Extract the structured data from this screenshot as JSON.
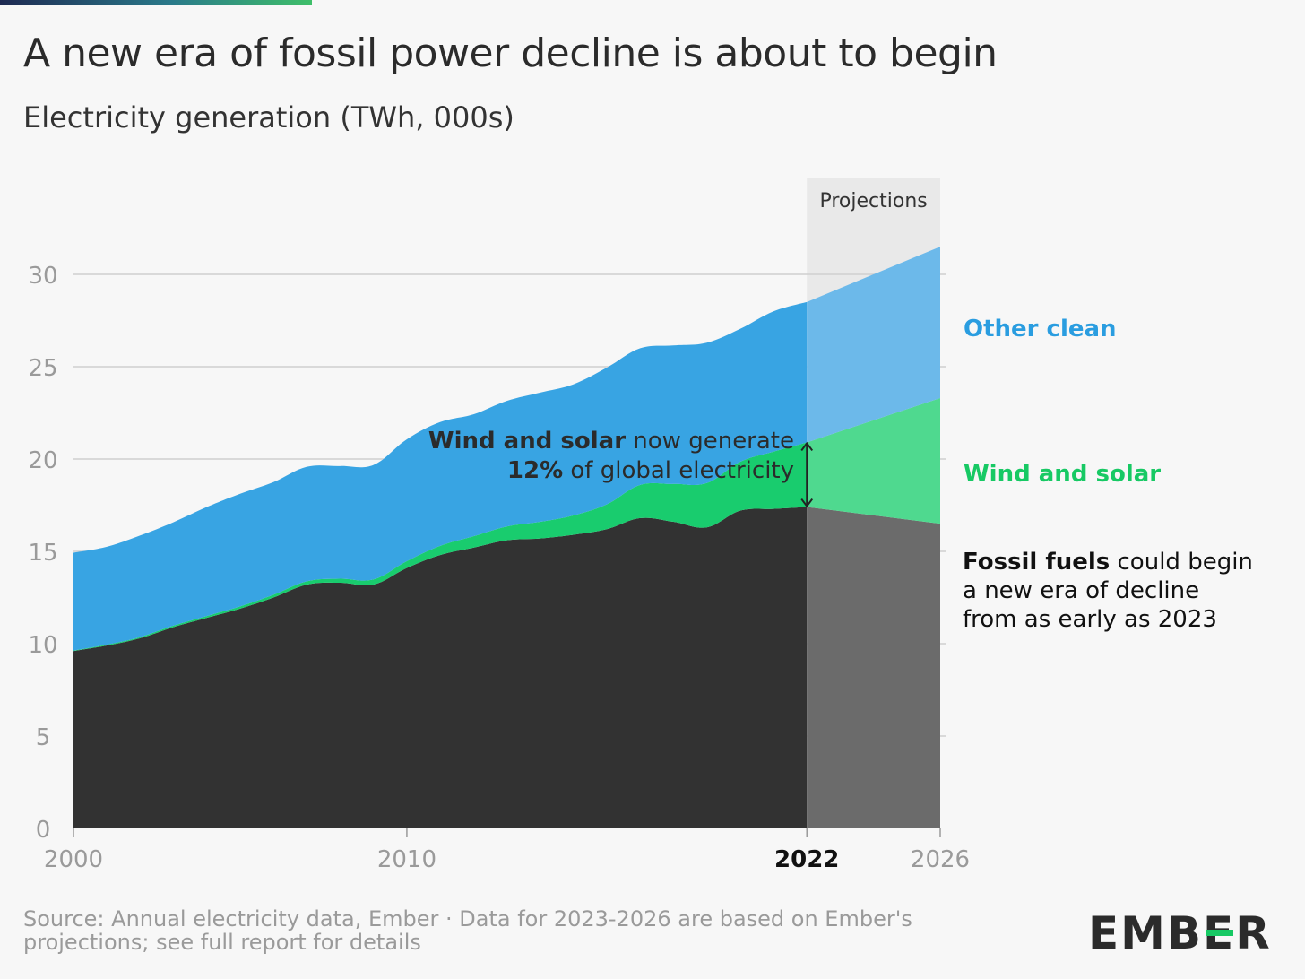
{
  "header": {
    "title": "A new era of fossil power decline is about to begin",
    "subtitle": "Electricity generation (TWh, 000s)"
  },
  "annotations": {
    "projections": "Projections",
    "ws_bold": "Wind and solar",
    "ws_rest": " now generate",
    "ws_pct": "12%",
    "ws_rest2": " of global electricity",
    "other_clean": "Other clean",
    "wind_solar": "Wind and solar",
    "fossil_bold": "Fossil fuels",
    "fossil_line1": " could begin",
    "fossil_line2": "a new era of decline",
    "fossil_line3": "from as early as 2023"
  },
  "footer": {
    "source": "Source: Annual electricity data, Ember · Data for 2023-2026 are based on Ember's projections; see full report for details",
    "logo": "EMBER"
  },
  "colors": {
    "fossil": "#323232",
    "fossil_proj": "#6b6b6b",
    "wind_solar": "#19cc6e",
    "wind_solar_proj": "#4fd98f",
    "other_clean": "#38a4e3",
    "other_clean_proj": "#6cb9ea",
    "projection_band": "#e9e9e9"
  },
  "chart_data": {
    "type": "area",
    "stacked": true,
    "title": "A new era of fossil power decline is about to begin",
    "subtitle": "Electricity generation (TWh, 000s)",
    "x": [
      2000,
      2001,
      2002,
      2003,
      2004,
      2005,
      2006,
      2007,
      2008,
      2009,
      2010,
      2011,
      2012,
      2013,
      2014,
      2015,
      2016,
      2017,
      2018,
      2019,
      2020,
      2021,
      2022,
      2026
    ],
    "x_ticks": [
      "2000",
      "2010",
      "2022",
      "2026"
    ],
    "y_ticks": [
      "0",
      "5",
      "10",
      "15",
      "20",
      "25",
      "30"
    ],
    "ylim": [
      0,
      32
    ],
    "xlim": [
      2000,
      2026
    ],
    "grid": true,
    "projection_start": 2022,
    "series": [
      {
        "name": "Fossil fuels",
        "values": [
          9.6,
          9.9,
          10.3,
          10.9,
          11.4,
          11.9,
          12.5,
          13.2,
          13.3,
          13.2,
          14.1,
          14.8,
          15.2,
          15.6,
          15.7,
          15.9,
          16.2,
          16.8,
          16.6,
          16.3,
          17.2,
          17.3,
          17.4,
          16.5
        ]
      },
      {
        "name": "Wind and solar",
        "values": [
          0.03,
          0.05,
          0.06,
          0.08,
          0.1,
          0.12,
          0.15,
          0.18,
          0.22,
          0.28,
          0.37,
          0.5,
          0.62,
          0.75,
          0.9,
          1.05,
          1.35,
          1.8,
          2.05,
          2.4,
          2.65,
          3.1,
          3.5,
          6.8
        ]
      },
      {
        "name": "Other clean",
        "values": [
          5.3,
          5.3,
          5.5,
          5.6,
          5.9,
          6.1,
          6.1,
          6.2,
          6.1,
          6.2,
          6.6,
          6.7,
          6.6,
          6.8,
          7.0,
          7.1,
          7.4,
          7.4,
          7.5,
          7.6,
          7.2,
          7.6,
          7.6,
          8.2
        ]
      }
    ]
  }
}
